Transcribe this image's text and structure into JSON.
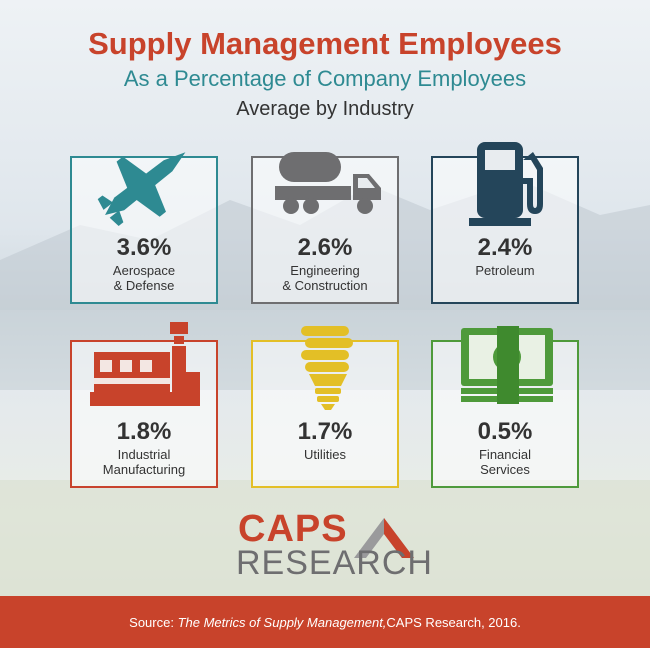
{
  "header": {
    "title": "Supply Management Employees",
    "subtitle": "As a Percentage of Company Employees",
    "subtitle2": "Average by Industry"
  },
  "cards": [
    {
      "value": "3.6%",
      "label1": "Aerospace",
      "label2": "& Defense",
      "icon": "fighter-jet-icon",
      "color": "#2e8a92"
    },
    {
      "value": "2.6%",
      "label1": "Engineering",
      "label2": "& Construction",
      "icon": "tanker-truck-icon",
      "color": "#6e6e70"
    },
    {
      "value": "2.4%",
      "label1": "Petroleum",
      "label2": "",
      "icon": "fuel-pump-icon",
      "color": "#24455a"
    },
    {
      "value": "1.8%",
      "label1": "Industrial",
      "label2": "Manufacturing",
      "icon": "factory-icon",
      "color": "#c8432b"
    },
    {
      "value": "1.7%",
      "label1": "Utilities",
      "label2": "",
      "icon": "light-bulb-icon",
      "color": "#e3bf26"
    },
    {
      "value": "0.5%",
      "label1": "Financial",
      "label2": "Services",
      "icon": "money-stack-icon",
      "color": "#4e9a3a"
    }
  ],
  "logo": {
    "line1": "CAPS",
    "line2": "RESEARCH"
  },
  "footer": {
    "prefix": "Source: ",
    "italic": "The Metrics of Supply Management,",
    "suffix": " CAPS Research, 2016."
  }
}
